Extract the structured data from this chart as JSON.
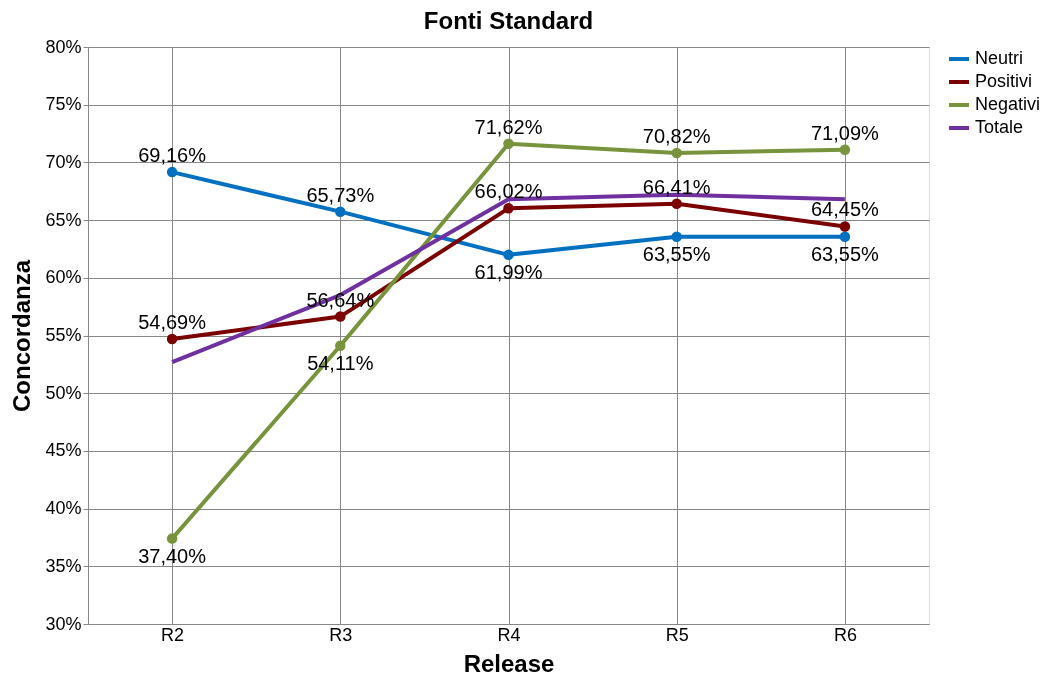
{
  "chart_data": {
    "type": "line",
    "title": "Fonti Standard",
    "xlabel": "Release",
    "ylabel": "Concordanza",
    "categories": [
      "R2",
      "R3",
      "R4",
      "R5",
      "R6"
    ],
    "ylim": [
      30,
      80
    ],
    "yticks": [
      {
        "value": 30,
        "label": "30%"
      },
      {
        "value": 35,
        "label": "35%"
      },
      {
        "value": 40,
        "label": "40%"
      },
      {
        "value": 45,
        "label": "45%"
      },
      {
        "value": 50,
        "label": "50%"
      },
      {
        "value": 55,
        "label": "55%"
      },
      {
        "value": 60,
        "label": "60%"
      },
      {
        "value": 65,
        "label": "65%"
      },
      {
        "value": 70,
        "label": "70%"
      },
      {
        "value": 75,
        "label": "75%"
      },
      {
        "value": 80,
        "label": "80%"
      }
    ],
    "grid": true,
    "legend": "right",
    "line_style": "solid",
    "series": [
      {
        "name": "Neutri",
        "color": "#0070c0",
        "marker": "circle",
        "values": [
          69.16,
          65.73,
          61.99,
          63.55,
          63.55
        ],
        "value_labels": [
          "69,16%",
          "65,73%",
          "61,99%",
          "63,55%",
          "63,55%"
        ]
      },
      {
        "name": "Positivi",
        "color": "#7b0000",
        "marker": "circle",
        "values": [
          54.69,
          56.64,
          66.02,
          66.41,
          64.45
        ],
        "value_labels": [
          "54,69%",
          "56,64%",
          "66,02%",
          "66,41%",
          "64,45%"
        ]
      },
      {
        "name": "Negativi",
        "color": "#77933c",
        "marker": "circle",
        "values": [
          37.4,
          54.11,
          71.62,
          70.82,
          71.09
        ],
        "value_labels": [
          "37,40%",
          "54,11%",
          "71,62%",
          "70,82%",
          "71,09%"
        ]
      },
      {
        "name": "Totale",
        "color": "#7030a0",
        "marker": "none",
        "values": [
          52.7,
          58.5,
          66.8,
          67.2,
          66.8
        ]
      }
    ]
  }
}
